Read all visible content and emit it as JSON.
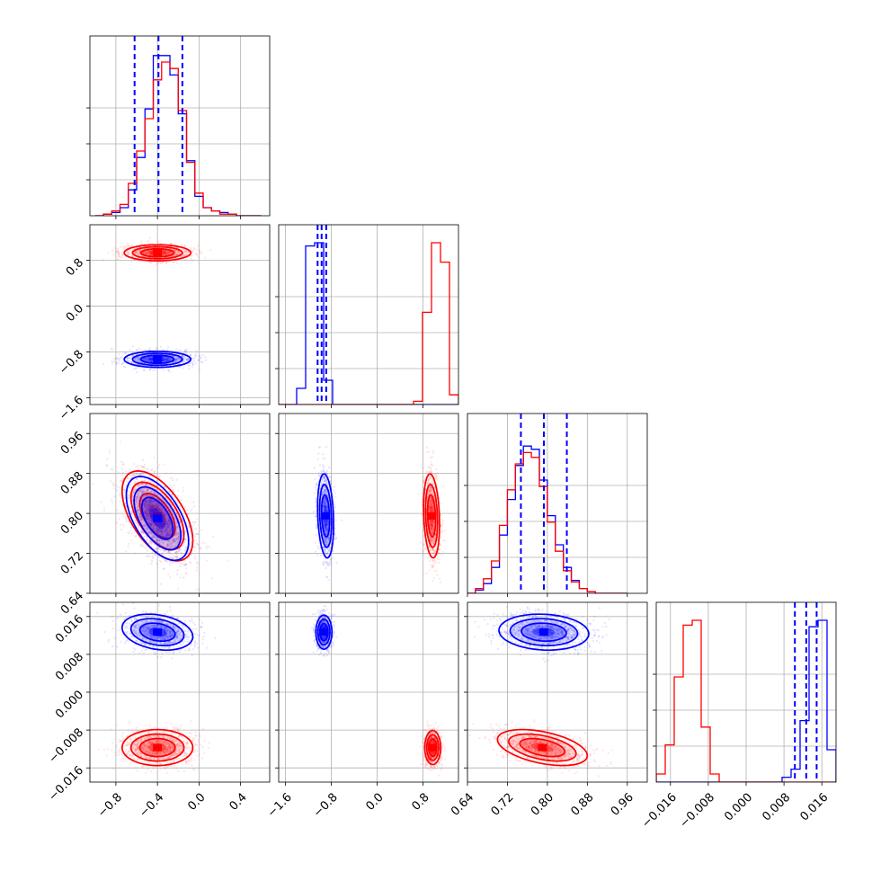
{
  "chart_data": {
    "type": "scatter",
    "title": "",
    "series": [
      {
        "name": "",
        "color": "#0000ff",
        "description_colour": "blue"
      },
      {
        "name": "",
        "color": "#ff0000",
        "description_colour": "red"
      }
    ],
    "variables": [
      {
        "index": 0,
        "range": [
          -1.05,
          0.68
        ],
        "ticks": [
          "−0.8",
          "−0.4",
          "0.0",
          "0.4"
        ],
        "tick_values": [
          -0.8,
          -0.4,
          0.0,
          0.4
        ]
      },
      {
        "index": 1,
        "range": [
          -1.72,
          1.42
        ],
        "ticks": [
          "−1.6",
          "−0.8",
          "0.0",
          "0.8"
        ],
        "tick_values": [
          -1.6,
          -0.8,
          0.0,
          0.8
        ]
      },
      {
        "index": 2,
        "range": [
          0.64,
          1.0
        ],
        "ticks": [
          "0.64",
          "0.72",
          "0.80",
          "0.88",
          "0.96"
        ],
        "tick_values": [
          0.64,
          0.72,
          0.8,
          0.88,
          0.96
        ]
      },
      {
        "index": 3,
        "range": [
          -0.019,
          0.019
        ],
        "ticks": [
          "−0.016",
          "−0.008",
          "0.000",
          "0.008",
          "0.016"
        ],
        "tick_values": [
          -0.016,
          -0.008,
          0.0,
          0.008,
          0.016
        ]
      }
    ],
    "quantile_lines": [
      {
        "variable": 0,
        "values": [
          -0.62,
          -0.39,
          -0.16
        ],
        "color": "#0000ff"
      },
      {
        "variable": 1,
        "values": [
          -1.04,
          -0.97,
          -0.89
        ],
        "color": "#0000ff"
      },
      {
        "variable": 2,
        "values": [
          0.747,
          0.793,
          0.839
        ],
        "color": "#0000ff"
      },
      {
        "variable": 3,
        "values": [
          0.0103,
          0.0127,
          0.0149
        ],
        "color": "#0000ff"
      }
    ],
    "histograms": [
      {
        "variable": 0,
        "bins": [
          -1.0,
          0.6
        ],
        "blue": [
          0.0,
          0.01,
          0.02,
          0.05,
          0.16,
          0.36,
          0.66,
          0.99,
          0.99,
          0.87,
          0.63,
          0.34,
          0.12,
          0.05,
          0.03,
          0.02,
          0.01,
          0.0,
          0.0,
          0.0
        ],
        "red": [
          0.0,
          0.01,
          0.03,
          0.07,
          0.2,
          0.4,
          0.6,
          0.84,
          0.95,
          0.91,
          0.65,
          0.33,
          0.14,
          0.05,
          0.03,
          0.01,
          0.01,
          0.0,
          0.0,
          0.0
        ]
      },
      {
        "variable": 1,
        "bins": [
          -1.72,
          1.42
        ],
        "blue": [
          0.0,
          0.0,
          0.1,
          0.98,
          1.0,
          0.15,
          0.0,
          0.0,
          0.0,
          0.0,
          0.0,
          0.0,
          0.0,
          0.0,
          0.0,
          0.0,
          0.0,
          0.0,
          0.0,
          0.0
        ],
        "red": [
          0.0,
          0.0,
          0.0,
          0.0,
          0.0,
          0.0,
          0.0,
          0.0,
          0.0,
          0.0,
          0.0,
          0.0,
          0.0,
          0.0,
          0.0,
          0.02,
          0.57,
          1.0,
          0.88,
          0.06
        ]
      },
      {
        "variable": 2,
        "bins": [
          0.64,
          0.96
        ],
        "blue": [
          0.0,
          0.02,
          0.06,
          0.16,
          0.36,
          0.58,
          0.79,
          0.91,
          0.89,
          0.7,
          0.48,
          0.3,
          0.16,
          0.08,
          0.03,
          0.01,
          0.0,
          0.0,
          0.0,
          0.0
        ],
        "red": [
          0.0,
          0.03,
          0.09,
          0.2,
          0.42,
          0.64,
          0.8,
          0.87,
          0.84,
          0.66,
          0.44,
          0.26,
          0.14,
          0.07,
          0.03,
          0.01,
          0.0,
          0.0,
          0.0,
          0.0
        ]
      },
      {
        "variable": 3,
        "bins": [
          -0.019,
          0.019
        ],
        "blue": [
          0.0,
          0.0,
          0.0,
          0.0,
          0.0,
          0.0,
          0.0,
          0.0,
          0.0,
          0.0,
          0.0,
          0.0,
          0.0,
          0.0,
          0.03,
          0.08,
          0.38,
          0.96,
          1.0,
          0.2
        ],
        "red": [
          0.05,
          0.23,
          0.65,
          0.97,
          1.0,
          0.34,
          0.05,
          0.0,
          0.0,
          0.0,
          0.0,
          0.0,
          0.0,
          0.0,
          0.0,
          0.0,
          0.0,
          0.0,
          0.0,
          0.0
        ]
      }
    ],
    "clusters": [
      {
        "x": 0,
        "y": 1,
        "series": "red",
        "center": [
          -0.4,
          0.93
        ],
        "sd": [
          0.16,
          0.07
        ],
        "rho": 0.0
      },
      {
        "x": 0,
        "y": 1,
        "series": "blue",
        "center": [
          -0.4,
          -0.93
        ],
        "sd": [
          0.16,
          0.07
        ],
        "rho": 0.0
      },
      {
        "x": 0,
        "y": 2,
        "series": "red",
        "center": [
          -0.4,
          0.795
        ],
        "sd": [
          0.17,
          0.045
        ],
        "rho": -0.55
      },
      {
        "x": 0,
        "y": 2,
        "series": "blue",
        "center": [
          -0.4,
          0.79
        ],
        "sd": [
          0.15,
          0.042
        ],
        "rho": -0.55
      },
      {
        "x": 0,
        "y": 3,
        "series": "blue",
        "center": [
          -0.4,
          0.0127
        ],
        "sd": [
          0.17,
          0.0019
        ],
        "rho": -0.25
      },
      {
        "x": 0,
        "y": 3,
        "series": "red",
        "center": [
          -0.4,
          -0.0117
        ],
        "sd": [
          0.17,
          0.0019
        ],
        "rho": 0.0
      },
      {
        "x": 1,
        "y": 2,
        "series": "blue",
        "center": [
          -0.9,
          0.795
        ],
        "sd": [
          0.07,
          0.042
        ],
        "rho": -0.2
      },
      {
        "x": 1,
        "y": 2,
        "series": "red",
        "center": [
          0.95,
          0.795
        ],
        "sd": [
          0.07,
          0.042
        ],
        "rho": -0.2
      },
      {
        "x": 1,
        "y": 3,
        "series": "blue",
        "center": [
          -0.93,
          0.0127
        ],
        "sd": [
          0.07,
          0.0018
        ],
        "rho": 0.0
      },
      {
        "x": 1,
        "y": 3,
        "series": "red",
        "center": [
          0.97,
          -0.0117
        ],
        "sd": [
          0.07,
          0.0018
        ],
        "rho": 0.0
      },
      {
        "x": 2,
        "y": 3,
        "series": "blue",
        "center": [
          0.793,
          0.0127
        ],
        "sd": [
          0.045,
          0.0019
        ],
        "rho": -0.1
      },
      {
        "x": 2,
        "y": 3,
        "series": "red",
        "center": [
          0.79,
          -0.0117
        ],
        "sd": [
          0.045,
          0.0019
        ],
        "rho": -0.45
      }
    ],
    "grid": true,
    "legend": "none"
  }
}
